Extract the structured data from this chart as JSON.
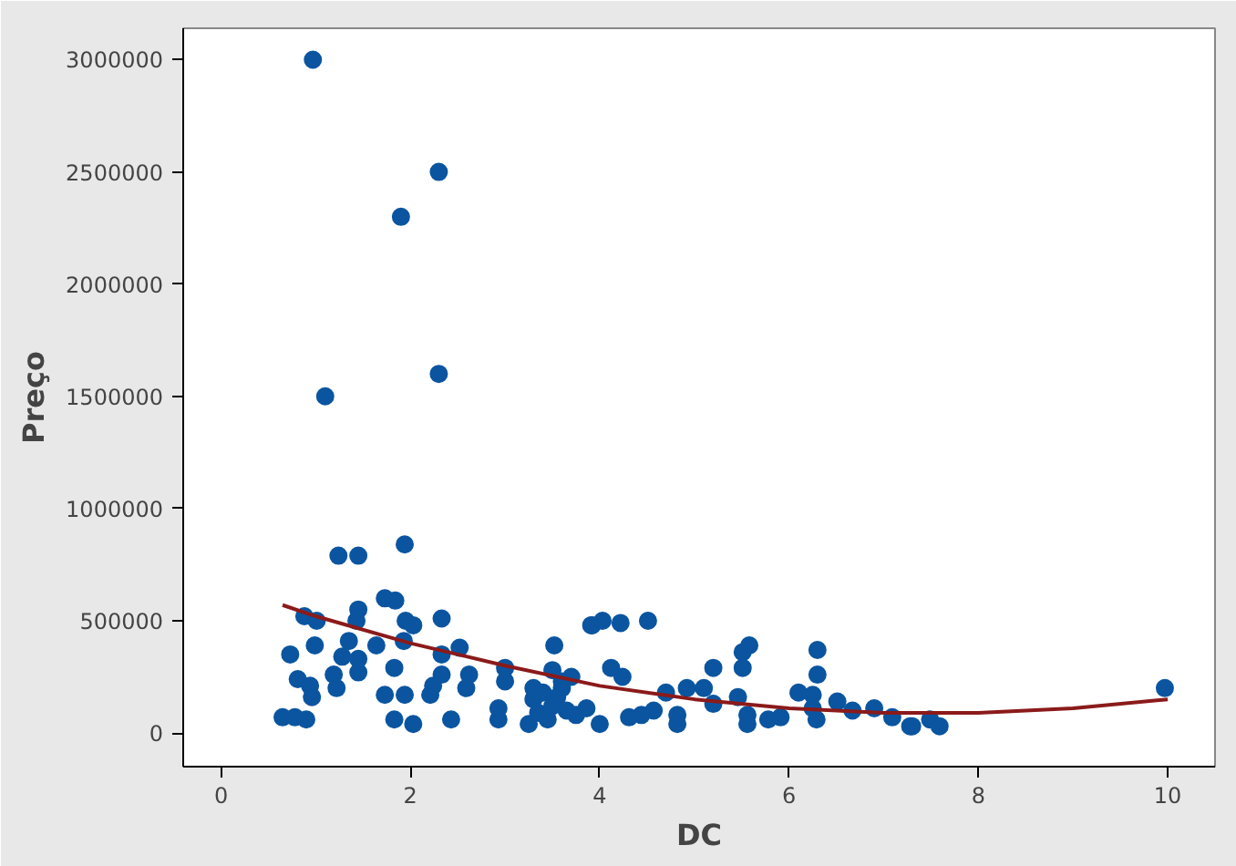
{
  "chart_data": {
    "type": "scatter",
    "xlabel": "DC",
    "ylabel": "Preço",
    "xlim": [
      -0.4,
      10.5
    ],
    "ylim": [
      -150000,
      3140000
    ],
    "xticks": [
      0,
      2,
      4,
      6,
      8,
      10
    ],
    "yticks": [
      0,
      500000,
      1000000,
      1500000,
      2000000,
      2500000,
      3000000
    ],
    "grid": false,
    "series": [
      {
        "color": "#0b55a0",
        "marker": "circle",
        "x": [
          0.97,
          2.3,
          1.9,
          2.3,
          1.1,
          1.94,
          1.24,
          1.45,
          1.73,
          1.84,
          1.45,
          1.43,
          0.88,
          1.01,
          1.95,
          2.03,
          2.33,
          1.35,
          1.28,
          0.99,
          0.73,
          1.64,
          1.93,
          2.33,
          2.52,
          1.45,
          1.45,
          1.83,
          1.19,
          0.81,
          0.94,
          0.96,
          1.22,
          2.33,
          2.24,
          2.21,
          2.62,
          2.59,
          3.0,
          3.0,
          1.73,
          1.94,
          0.65,
          0.78,
          0.9,
          1.83,
          2.03,
          2.43,
          2.93,
          2.93,
          3.52,
          3.91,
          3.3,
          3.4,
          3.5,
          3.6,
          3.35,
          3.45,
          3.55,
          3.65,
          3.25,
          3.7,
          3.5,
          3.6,
          3.3,
          3.75,
          3.92,
          4.03,
          4.22,
          4.51,
          4.12,
          4.24,
          5.58,
          5.51,
          5.51,
          6.3,
          6.3,
          5.2,
          3.86,
          4.0,
          4.7,
          4.92,
          5.1,
          4.31,
          4.44,
          4.57,
          4.82,
          4.82,
          5.2,
          5.46,
          5.56,
          5.56,
          5.78,
          5.91,
          6.1,
          6.25,
          6.29,
          6.25,
          6.51,
          6.67,
          6.9,
          7.09,
          7.28,
          7.49,
          7.3,
          7.59,
          9.97
        ],
        "values": [
          3000000,
          2500000,
          2300000,
          1600000,
          1500000,
          840000,
          790000,
          790000,
          600000,
          590000,
          550000,
          500000,
          520000,
          500000,
          500000,
          480000,
          510000,
          410000,
          340000,
          390000,
          350000,
          390000,
          410000,
          350000,
          380000,
          330000,
          270000,
          290000,
          260000,
          240000,
          210000,
          160000,
          200000,
          260000,
          210000,
          170000,
          260000,
          200000,
          290000,
          230000,
          170000,
          170000,
          70000,
          70000,
          60000,
          60000,
          40000,
          60000,
          110000,
          60000,
          390000,
          480000,
          150000,
          180000,
          120000,
          200000,
          90000,
          60000,
          160000,
          100000,
          40000,
          250000,
          280000,
          230000,
          200000,
          80000,
          480000,
          500000,
          490000,
          500000,
          290000,
          250000,
          390000,
          360000,
          290000,
          370000,
          260000,
          290000,
          110000,
          40000,
          180000,
          200000,
          200000,
          70000,
          80000,
          100000,
          80000,
          40000,
          130000,
          160000,
          80000,
          40000,
          60000,
          70000,
          180000,
          170000,
          60000,
          110000,
          140000,
          100000,
          110000,
          70000,
          30000,
          60000,
          30000,
          30000,
          200000
        ]
      },
      {
        "type": "line",
        "color": "#8b1a1a",
        "marker": "none",
        "line_style": "solid",
        "x": [
          0.65,
          1,
          2,
          3,
          4,
          5,
          6,
          7,
          8,
          9,
          10
        ],
        "values": [
          570000,
          520000,
          400000,
          300000,
          210000,
          150000,
          110000,
          90000,
          90000,
          110000,
          150000
        ]
      }
    ]
  }
}
